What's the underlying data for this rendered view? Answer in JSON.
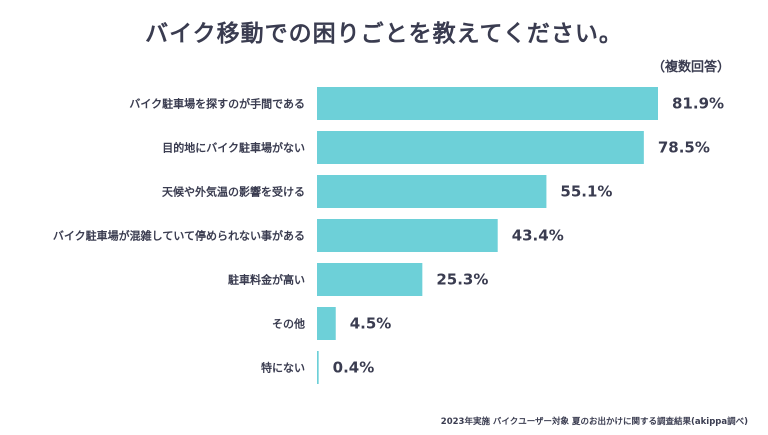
{
  "chart_data": {
    "type": "bar",
    "orientation": "horizontal",
    "title": "バイク移動での困りごとを教えてください。",
    "note": "（複数回答）",
    "categories": [
      "バイク駐車場を探すのが手間である",
      "目的地にバイク駐車場がない",
      "天候や外気温の影響を受ける",
      "バイク駐車場が混雑していて停められない事がある",
      "駐車料金が高い",
      "その他",
      "特にない"
    ],
    "values": [
      81.9,
      78.5,
      55.1,
      43.4,
      25.3,
      4.5,
      0.4
    ],
    "value_labels": [
      "81.9%",
      "78.5%",
      "55.1%",
      "43.4%",
      "25.3%",
      "4.5%",
      "0.4%"
    ],
    "unit": "%",
    "grid": false,
    "bar_color": "#6dd0d8",
    "source": "2023年実施 バイクユーザー対象 夏のお出かけに関する調査結果(akippa調べ)"
  }
}
